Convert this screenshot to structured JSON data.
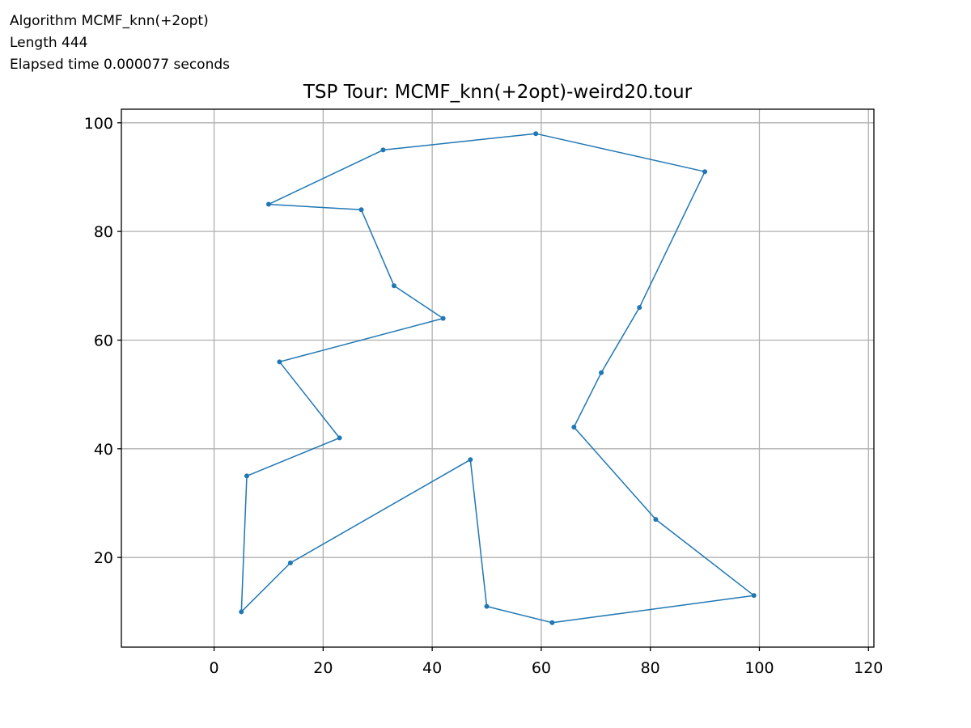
{
  "header_lines": [
    "Algorithm MCMF_knn(+2opt)",
    "Length 444",
    "Elapsed time 0.000077 seconds"
  ],
  "chart_data": {
    "type": "line",
    "title": "TSP Tour: MCMF_knn(+2opt)-weird20.tour",
    "xlabel": "",
    "ylabel": "",
    "xlim": [
      -17,
      121
    ],
    "ylim": [
      3.5,
      102.5
    ],
    "xticks": [
      0,
      20,
      40,
      60,
      80,
      100,
      120
    ],
    "yticks": [
      20,
      40,
      60,
      80,
      100
    ],
    "grid": true,
    "series": [
      {
        "color": "#1f77b4",
        "marker": "dot",
        "points": [
          [
            59,
            98
          ],
          [
            90,
            91
          ],
          [
            78,
            66
          ],
          [
            71,
            54
          ],
          [
            66,
            44
          ],
          [
            81,
            27
          ],
          [
            99,
            13
          ],
          [
            62,
            8
          ],
          [
            50,
            11
          ],
          [
            47,
            38
          ],
          [
            14,
            19
          ],
          [
            5,
            10
          ],
          [
            6,
            35
          ],
          [
            23,
            42
          ],
          [
            12,
            56
          ],
          [
            42,
            64
          ],
          [
            33,
            70
          ],
          [
            27,
            84
          ],
          [
            10,
            85
          ],
          [
            31,
            95
          ],
          [
            59,
            98
          ]
        ]
      }
    ]
  }
}
